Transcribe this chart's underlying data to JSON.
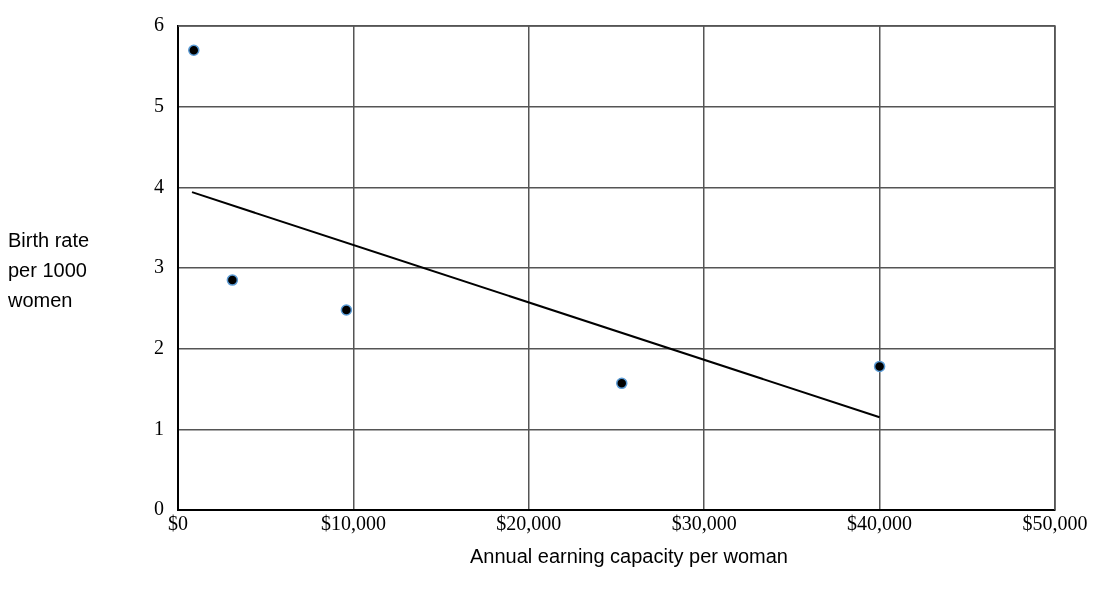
{
  "chart_data": {
    "type": "scatter",
    "xlabel": "Annual earning capacity per woman",
    "ylabel": "Birth rate per 1000 women",
    "xlim": [
      0,
      50000
    ],
    "xticks": [
      {
        "value": 0,
        "label": "$0"
      },
      {
        "value": 10000,
        "label": "$10,000"
      },
      {
        "value": 20000,
        "label": "$20,000"
      },
      {
        "value": 30000,
        "label": "$30,000"
      },
      {
        "value": 40000,
        "label": "$40,000"
      },
      {
        "value": 50000,
        "label": "$50,000"
      }
    ],
    "ylim": [
      0,
      6
    ],
    "yticks": [
      0,
      1,
      2,
      3,
      4,
      5,
      6
    ],
    "grid": true,
    "legend": false,
    "marker": "circle",
    "series": [
      {
        "color": "#000000",
        "x": [
          900,
          3100,
          9600,
          25300,
          40000
        ],
        "values": [
          5.7,
          2.85,
          2.48,
          1.57,
          1.78
        ]
      },
      {
        "type": "line",
        "color": "#000000",
        "x": [
          800,
          40000
        ],
        "values": [
          3.94,
          1.15
        ],
        "marker": "none",
        "line_style": "solid"
      }
    ]
  }
}
